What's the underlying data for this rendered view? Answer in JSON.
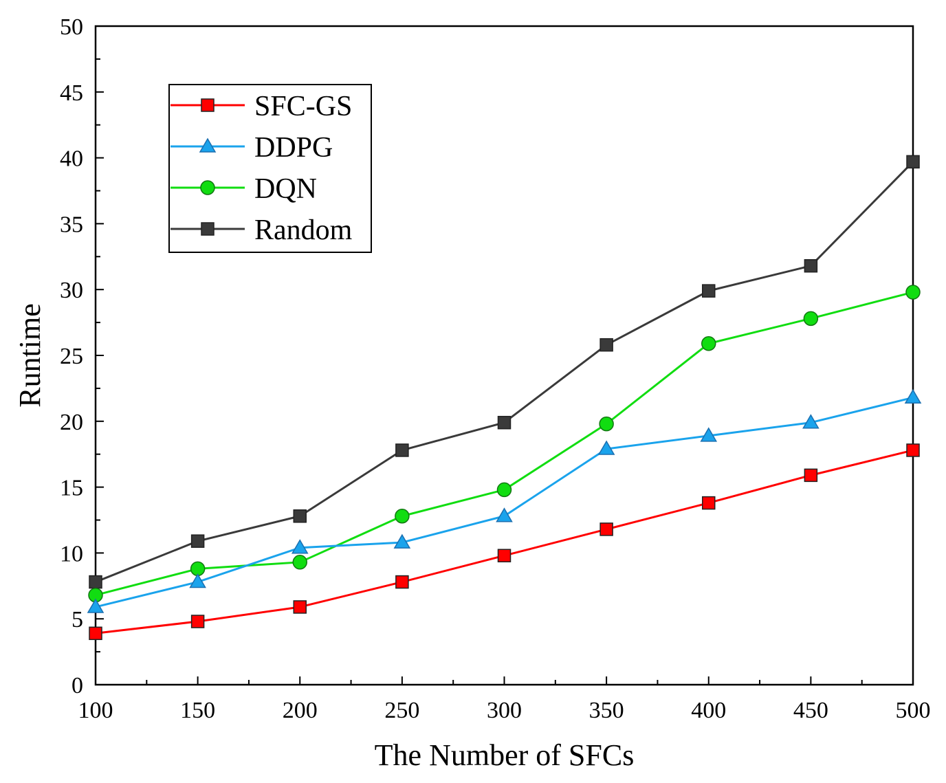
{
  "chart_data": {
    "type": "line",
    "title": "",
    "xlabel": "The Number of SFCs",
    "ylabel": "Runtime",
    "x": [
      100,
      150,
      200,
      250,
      300,
      350,
      400,
      450,
      500
    ],
    "xlim": [
      100,
      500
    ],
    "ylim": [
      0,
      50
    ],
    "x_ticks": [
      100,
      150,
      200,
      250,
      300,
      350,
      400,
      450,
      500
    ],
    "y_ticks": [
      0,
      5,
      10,
      15,
      20,
      25,
      30,
      35,
      40,
      45,
      50
    ],
    "grid": false,
    "legend_position": "top-left",
    "series": [
      {
        "name": "SFC-GS",
        "color": "#ff0000",
        "marker": "square",
        "values": [
          3.9,
          4.8,
          5.9,
          7.8,
          9.8,
          11.8,
          13.8,
          15.9,
          17.8
        ]
      },
      {
        "name": "DDPG",
        "color": "#1aa3ec",
        "marker": "triangle",
        "values": [
          5.9,
          7.8,
          10.4,
          10.8,
          12.8,
          17.9,
          18.9,
          19.9,
          21.8
        ]
      },
      {
        "name": "DQN",
        "color": "#11dd11",
        "marker": "circle",
        "values": [
          6.8,
          8.8,
          9.3,
          12.8,
          14.8,
          19.8,
          25.9,
          27.8,
          29.8
        ]
      },
      {
        "name": "Random",
        "color": "#3a3a3a",
        "marker": "square",
        "values": [
          7.8,
          10.9,
          12.8,
          17.8,
          19.9,
          25.8,
          29.9,
          31.8,
          39.7
        ]
      }
    ]
  }
}
